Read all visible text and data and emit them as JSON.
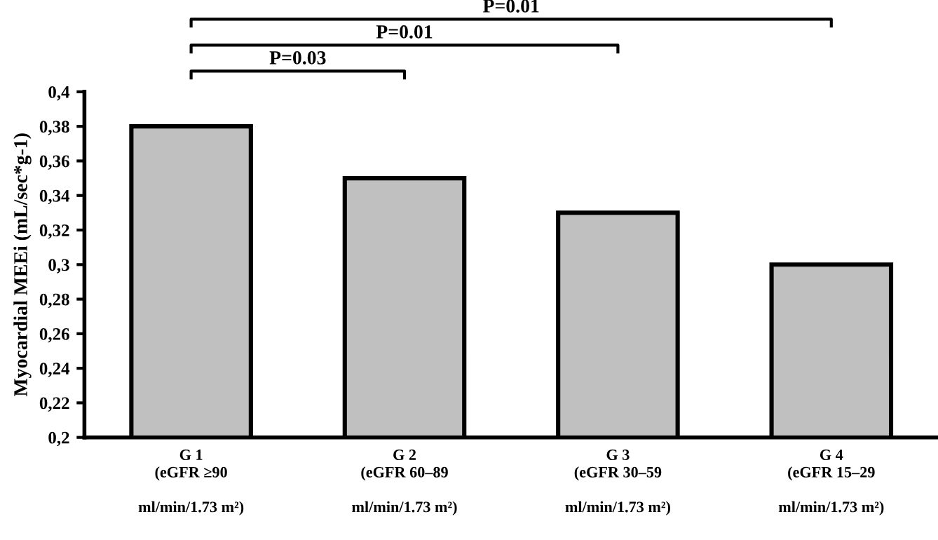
{
  "chart_data": {
    "type": "bar",
    "ylabel": "Myocardial MEEi (mL/sec*g-1)",
    "categories": [
      "G 1\n(eGFR ≥90\n\nml/min/1.73 m²)",
      "G 2\n(eGFR 60–89\n\nml/min/1.73 m²)",
      "G 3\n(eGFR 30–59\n\nml/min/1.73 m²)",
      "G 4\n(eGFR 15–29\n\nml/min/1.73 m²)"
    ],
    "values": [
      0.38,
      0.35,
      0.33,
      0.3
    ],
    "color": "#c0c0c0",
    "ylim": [
      0.2,
      0.4
    ],
    "yticks": [
      {
        "value": 0.2,
        "label": "0,2"
      },
      {
        "value": 0.22,
        "label": "0,22"
      },
      {
        "value": 0.24,
        "label": "0,24"
      },
      {
        "value": 0.26,
        "label": "0,26"
      },
      {
        "value": 0.28,
        "label": "0,28"
      },
      {
        "value": 0.3,
        "label": "0,3"
      },
      {
        "value": 0.32,
        "label": "0,32"
      },
      {
        "value": 0.34,
        "label": "0,34"
      },
      {
        "value": 0.36,
        "label": "0,36"
      },
      {
        "value": 0.38,
        "label": "0,38"
      },
      {
        "value": 0.4,
        "label": "0,4"
      }
    ],
    "annotations": [
      "P=0.03",
      "P=0.01",
      "P=0.01"
    ],
    "grid": false,
    "legend": false
  }
}
